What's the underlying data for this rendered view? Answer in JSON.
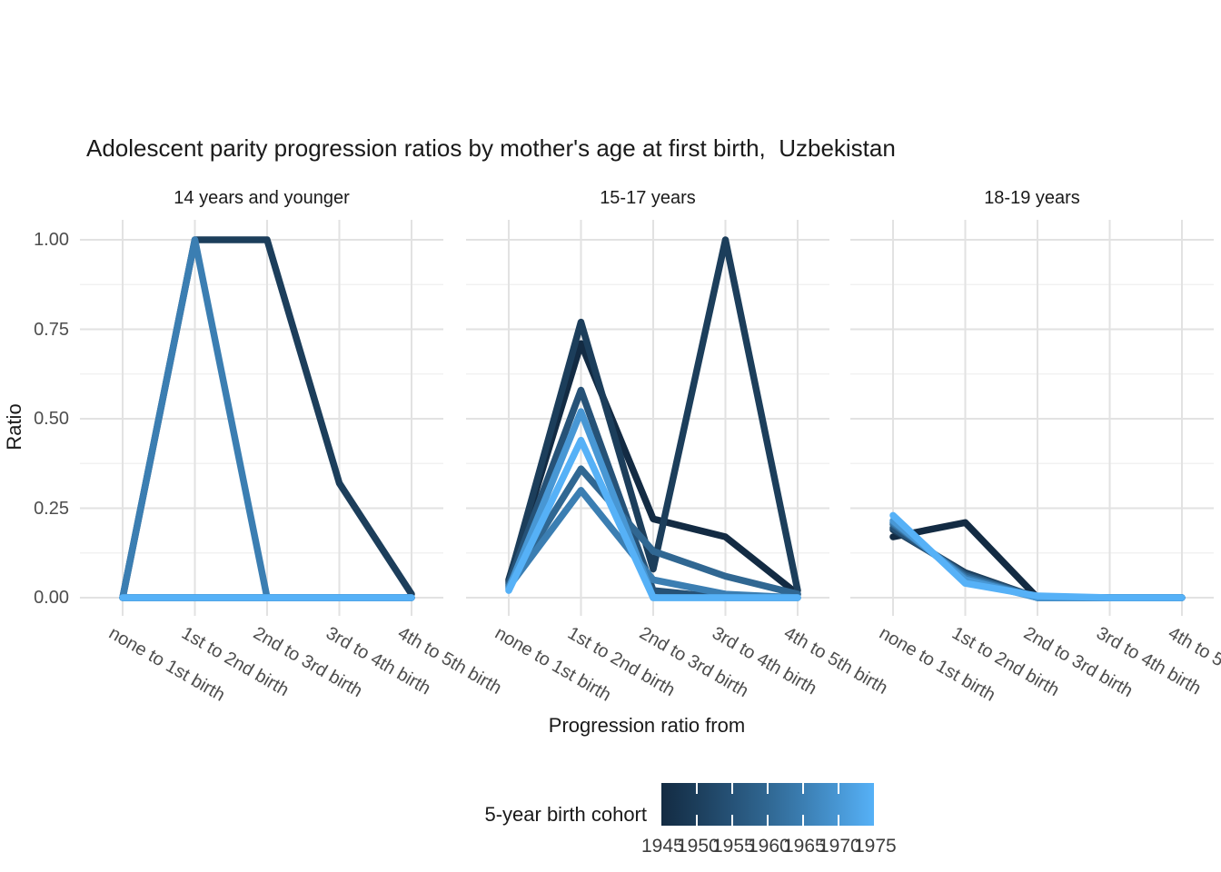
{
  "title": "Adolescent parity progression ratios by mother's age at first birth,  Uzbekistan",
  "chart_data": {
    "type": "line",
    "title": "Adolescent parity progression ratios by mother's age at first birth,  Uzbekistan",
    "xlabel": "Progression ratio from",
    "ylabel": "Ratio",
    "categories": [
      "none to 1st birth",
      "1st to 2nd birth",
      "2nd to 3rd birth",
      "3rd to 4th birth",
      "4th to 5th birth"
    ],
    "ytick_labels": [
      "1.00",
      "0.75",
      "0.50",
      "0.25",
      "0.00"
    ],
    "ytick_values": [
      1.0,
      0.75,
      0.5,
      0.25,
      0.0
    ],
    "ylim": [
      0,
      1
    ],
    "grid": "on",
    "legend": {
      "title": "5-year birth cohort",
      "position": "bottom",
      "ticks": [
        "1945",
        "1950",
        "1955",
        "1960",
        "1965",
        "1970",
        "1975"
      ],
      "gradient_low": "#132B43",
      "gradient_high": "#56B1F7"
    },
    "cohorts": [
      {
        "year": "1945",
        "color": "#132B43"
      },
      {
        "year": "1950",
        "color": "#1C3E5B"
      },
      {
        "year": "1955",
        "color": "#265277"
      },
      {
        "year": "1960",
        "color": "#306792"
      },
      {
        "year": "1965",
        "color": "#3B7EB2"
      },
      {
        "year": "1970",
        "color": "#4897D4"
      },
      {
        "year": "1975",
        "color": "#56B1F7"
      }
    ],
    "facets": [
      {
        "label": "14 years and younger",
        "series": [
          {
            "cohort": "1945",
            "values": [
              0.0,
              0.0,
              0.0,
              0.0,
              0.0
            ]
          },
          {
            "cohort": "1950",
            "values": [
              0.0,
              1.0,
              1.0,
              0.32,
              0.01
            ]
          },
          {
            "cohort": "1955",
            "values": [
              0.0,
              0.0,
              0.0,
              0.0,
              0.0
            ]
          },
          {
            "cohort": "1960",
            "values": [
              0.0,
              0.0,
              0.0,
              0.0,
              0.0
            ]
          },
          {
            "cohort": "1965",
            "values": [
              0.0,
              1.0,
              0.0,
              0.0,
              0.0
            ]
          },
          {
            "cohort": "1970",
            "values": [
              0.0,
              0.0,
              0.0,
              0.0,
              0.0
            ]
          },
          {
            "cohort": "1975",
            "values": [
              0.0,
              0.0,
              0.0,
              0.0,
              0.0
            ]
          }
        ]
      },
      {
        "label": "15-17 years",
        "series": [
          {
            "cohort": "1945",
            "values": [
              0.05,
              0.71,
              0.22,
              0.17,
              0.01
            ]
          },
          {
            "cohort": "1950",
            "values": [
              0.045,
              0.77,
              0.08,
              1.0,
              0.02
            ]
          },
          {
            "cohort": "1955",
            "values": [
              0.04,
              0.58,
              0.02,
              0.0,
              0.0
            ]
          },
          {
            "cohort": "1960",
            "values": [
              0.035,
              0.36,
              0.13,
              0.06,
              0.01
            ]
          },
          {
            "cohort": "1965",
            "values": [
              0.03,
              0.3,
              0.05,
              0.01,
              0.0
            ]
          },
          {
            "cohort": "1970",
            "values": [
              0.025,
              0.52,
              0.0,
              0.0,
              0.0
            ]
          },
          {
            "cohort": "1975",
            "values": [
              0.02,
              0.44,
              0.0,
              0.0,
              0.0
            ]
          }
        ]
      },
      {
        "label": "18-19 years",
        "series": [
          {
            "cohort": "1945",
            "values": [
              0.17,
              0.21,
              0.0,
              0.0,
              0.0
            ]
          },
          {
            "cohort": "1950",
            "values": [
              0.19,
              0.07,
              0.0,
              0.0,
              0.0
            ]
          },
          {
            "cohort": "1955",
            "values": [
              0.195,
              0.065,
              0.0,
              0.0,
              0.0
            ]
          },
          {
            "cohort": "1960",
            "values": [
              0.205,
              0.06,
              0.0,
              0.0,
              0.0
            ]
          },
          {
            "cohort": "1965",
            "values": [
              0.21,
              0.055,
              0.0,
              0.0,
              0.0
            ]
          },
          {
            "cohort": "1970",
            "values": [
              0.215,
              0.05,
              0.0,
              0.0,
              0.0
            ]
          },
          {
            "cohort": "1975",
            "values": [
              0.23,
              0.04,
              0.005,
              0.0,
              0.0
            ]
          }
        ]
      }
    ]
  },
  "style": {
    "grid_major_color": "#e2e2e2",
    "grid_minor_color": "#efefef",
    "axis_text_color": "#4d4d4d",
    "title_color": "#1a1a1a"
  }
}
